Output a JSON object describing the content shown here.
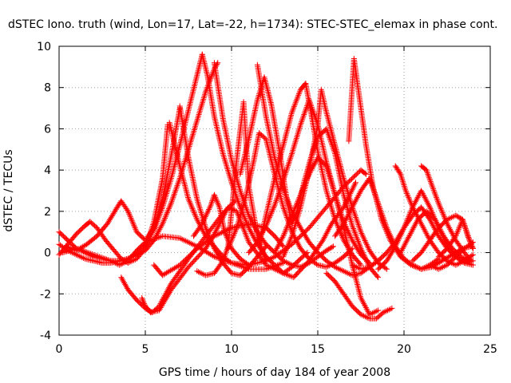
{
  "chart_data": {
    "type": "scatter",
    "title": "dSTEC Iono. truth (wind, Lon=17, Lat=-22, h=1734): STEC-STEC_elemax in phase cont.",
    "xlabel": "GPS time / hours of day 184 of year 2008",
    "ylabel": "dSTEC  / TECUs",
    "xlim": [
      0,
      25
    ],
    "ylim": [
      -4,
      10
    ],
    "xticks": [
      0,
      5,
      10,
      15,
      20,
      25
    ],
    "yticks": [
      -4,
      -2,
      0,
      2,
      4,
      6,
      8,
      10
    ],
    "grid": true,
    "marker": "+",
    "color": "#ff0000",
    "series": [
      {
        "x": [
          0.0,
          0.5,
          1.0,
          1.5,
          2.0,
          2.5,
          3.0,
          3.5,
          4.0,
          4.5,
          5.0,
          5.5,
          6.0,
          6.5,
          7.0,
          7.5,
          8.0,
          8.3
        ],
        "y": [
          0.4,
          0.1,
          -0.1,
          -0.3,
          -0.4,
          -0.5,
          -0.5,
          -0.4,
          -0.3,
          0.0,
          0.4,
          1.1,
          2.2,
          3.6,
          5.2,
          6.9,
          8.6,
          9.6
        ]
      },
      {
        "x": [
          0.0,
          0.5,
          1.0,
          1.5,
          2.0,
          2.5,
          3.0,
          3.5,
          4.0,
          4.5,
          5.0,
          5.5,
          6.0,
          6.5,
          7.0,
          7.5,
          8.0,
          8.5,
          9.0,
          9.2
        ],
        "y": [
          1.0,
          0.6,
          0.2,
          0.0,
          -0.2,
          -0.3,
          -0.4,
          -0.4,
          -0.3,
          -0.1,
          0.1,
          0.6,
          1.4,
          2.4,
          3.6,
          5.0,
          6.4,
          7.8,
          8.9,
          9.2
        ]
      },
      {
        "x": [
          0.0,
          0.5,
          1.0,
          1.5,
          1.8,
          2.2,
          2.7,
          3.2,
          3.6,
          4.0,
          4.5,
          5.0,
          5.5,
          6.0,
          6.3
        ],
        "y": [
          -0.1,
          0.4,
          0.9,
          1.3,
          1.5,
          1.2,
          0.6,
          0.1,
          -0.3,
          -0.5,
          -0.3,
          0.2,
          1.5,
          3.6,
          6.2
        ]
      },
      {
        "x": [
          0.4,
          1.0,
          1.6,
          2.2,
          2.8,
          3.3,
          3.6,
          4.0,
          4.5,
          5.0,
          5.5,
          6.0,
          6.5,
          7.0
        ],
        "y": [
          0.3,
          0.1,
          0.4,
          0.8,
          1.4,
          2.1,
          2.5,
          2.0,
          1.0,
          0.6,
          1.2,
          2.6,
          4.7,
          7.0
        ]
      },
      {
        "x": [
          0.2,
          1.0,
          2.0,
          3.0,
          3.5,
          4.0,
          4.5,
          5.0,
          6.0,
          7.0,
          8.0,
          9.0,
          10.0,
          11.0,
          12.0,
          12.5,
          13.5,
          14.5,
          15.5,
          16.5,
          17.5,
          17.8
        ],
        "y": [
          0.0,
          0.2,
          -0.1,
          -0.4,
          -0.6,
          -0.4,
          0.1,
          0.5,
          0.8,
          0.7,
          0.3,
          -0.2,
          -0.5,
          -0.6,
          -0.4,
          -0.2,
          0.4,
          1.2,
          2.2,
          3.2,
          4.0,
          3.8
        ]
      },
      {
        "x": [
          3.6,
          4.0,
          4.5,
          5.0,
          5.4,
          5.8,
          6.5,
          7.5,
          8.5,
          9.5,
          10.2
        ],
        "y": [
          -1.2,
          -1.8,
          -2.3,
          -2.7,
          -2.9,
          -2.6,
          -1.5,
          -0.3,
          0.8,
          1.9,
          2.5
        ]
      },
      {
        "x": [
          4.8,
          5.0,
          5.3,
          5.8,
          6.5,
          7.5,
          8.5,
          9.0,
          9.8,
          10.3,
          11.0,
          12.0,
          13.0,
          13.6,
          14.5,
          15.3,
          15.8,
          16.5,
          17.2
        ],
        "y": [
          -2.2,
          -2.6,
          -2.9,
          -2.8,
          -1.8,
          -0.7,
          0.2,
          0.9,
          2.2,
          2.0,
          0.5,
          -0.6,
          -1.0,
          -1.2,
          -0.4,
          0.6,
          1.4,
          2.2,
          3.4
        ]
      },
      {
        "x": [
          5.5,
          6.0,
          7.0,
          8.0,
          9.0,
          10.0,
          11.0,
          12.0,
          12.5,
          13.0
        ],
        "y": [
          -0.6,
          -1.1,
          -0.6,
          0.2,
          0.8,
          1.2,
          1.4,
          1.2,
          0.8,
          0.3
        ]
      },
      {
        "x": [
          8.3,
          8.6,
          9.0,
          9.5,
          10.0,
          10.5,
          11.0,
          11.5,
          12.0,
          12.5,
          13.0,
          13.5,
          14.0,
          14.4
        ],
        "y": [
          9.6,
          8.6,
          6.6,
          4.8,
          3.4,
          2.2,
          1.2,
          0.4,
          -0.2,
          -0.6,
          -1.0,
          -0.7,
          -0.3,
          0.0
        ]
      },
      {
        "x": [
          9.0,
          9.5,
          10.0,
          10.5,
          11.0,
          11.5,
          12.0,
          12.5,
          13.0,
          13.5,
          14.0,
          14.5,
          15.0,
          15.5,
          15.9
        ],
        "y": [
          9.2,
          6.5,
          4.5,
          3.0,
          1.8,
          1.0,
          0.4,
          0.0,
          -0.4,
          -0.6,
          -0.7,
          -0.5,
          -0.2,
          0.1,
          0.3
        ]
      },
      {
        "x": [
          6.4,
          7.0,
          7.5,
          8.0,
          8.5,
          9.0,
          9.5,
          10.0,
          11.0,
          12.0,
          13.0
        ],
        "y": [
          6.3,
          4.2,
          2.6,
          1.6,
          0.8,
          0.3,
          -0.2,
          -0.5,
          -0.8,
          -0.8,
          -0.5
        ]
      },
      {
        "x": [
          7.0,
          7.5,
          8.0,
          8.5,
          9.0,
          9.5,
          10.0,
          10.5,
          11.0,
          11.5,
          12.0
        ],
        "y": [
          7.1,
          4.6,
          2.6,
          1.2,
          0.2,
          -0.5,
          -1.0,
          -1.1,
          -0.7,
          -0.2,
          0.3
        ]
      },
      {
        "x": [
          8.0,
          8.5,
          9.0,
          9.5,
          9.8,
          10.0,
          10.3,
          10.7,
          11.0,
          11.5,
          12.0
        ],
        "y": [
          -0.9,
          -1.1,
          -1.0,
          -0.4,
          0.3,
          2.0,
          4.5,
          7.3,
          3.2,
          0.8,
          -0.4
        ]
      },
      {
        "x": [
          7.8,
          8.3,
          8.8,
          9.0,
          9.3,
          9.6,
          10.0,
          10.5,
          11.0
        ],
        "y": [
          0.8,
          1.4,
          2.3,
          2.8,
          2.2,
          1.0,
          0.2,
          -0.3,
          -0.6
        ]
      },
      {
        "x": [
          9.8,
          10.3,
          10.8,
          11.3,
          11.6,
          12.0,
          12.5,
          13.0,
          13.5,
          14.0,
          14.5,
          15.0,
          15.5,
          16.0,
          16.5,
          17.0
        ],
        "y": [
          0.2,
          1.2,
          2.6,
          4.5,
          5.8,
          5.5,
          3.8,
          2.2,
          1.0,
          0.2,
          -0.3,
          -0.6,
          -0.7,
          -0.5,
          -0.2,
          0.2
        ]
      },
      {
        "x": [
          11.5,
          12.0,
          12.5,
          13.0,
          13.5,
          14.0,
          14.5,
          15.0,
          15.5,
          16.0,
          16.5,
          17.0,
          17.5,
          18.0,
          18.5
        ],
        "y": [
          9.1,
          6.6,
          4.6,
          3.1,
          2.0,
          1.2,
          0.5,
          0.0,
          -0.4,
          -0.7,
          -0.9,
          -1.1,
          -1.0,
          -0.7,
          -0.4
        ]
      },
      {
        "x": [
          10.5,
          11.0,
          11.5,
          11.9,
          12.3,
          12.8,
          13.2,
          13.5,
          13.8,
          14.2,
          14.6,
          15.0,
          15.5,
          16.0,
          16.5,
          17.0,
          17.5,
          18.0,
          18.5
        ],
        "y": [
          3.8,
          5.5,
          7.4,
          8.5,
          7.2,
          4.8,
          2.6,
          1.4,
          2.0,
          3.4,
          4.6,
          5.6,
          6.0,
          4.8,
          2.8,
          1.3,
          0.2,
          -0.7,
          -1.2
        ]
      },
      {
        "x": [
          11.6,
          12.0,
          12.5,
          13.0,
          13.5,
          14.0,
          14.3,
          14.6,
          15.0,
          15.5,
          16.0,
          16.5,
          17.0,
          17.5
        ],
        "y": [
          0.4,
          1.8,
          3.6,
          5.2,
          6.8,
          7.9,
          8.2,
          6.8,
          4.9,
          3.0,
          1.6,
          0.6,
          -0.1,
          -0.6
        ]
      },
      {
        "x": [
          11.0,
          11.5,
          12.0,
          12.5,
          13.0,
          13.5,
          14.0,
          14.5,
          15.0,
          15.5,
          16.0,
          16.5,
          17.0,
          17.5,
          18.0
        ],
        "y": [
          0.0,
          0.5,
          1.3,
          2.3,
          3.5,
          4.8,
          6.2,
          7.4,
          6.2,
          4.4,
          2.8,
          1.5,
          0.6,
          -0.1,
          -0.5
        ]
      },
      {
        "x": [
          13.0,
          13.5,
          14.0,
          14.5,
          15.0,
          15.2,
          15.5,
          16.0,
          16.5,
          17.0,
          17.5,
          18.0,
          18.5,
          19.0
        ],
        "y": [
          -0.2,
          0.8,
          2.2,
          4.0,
          6.2,
          7.9,
          6.8,
          5.2,
          3.6,
          2.2,
          1.0,
          0.1,
          -0.5,
          -0.8
        ]
      },
      {
        "x": [
          12.5,
          13.0,
          13.5,
          14.0,
          14.5,
          15.0,
          15.5,
          16.0,
          16.5,
          17.0,
          17.5,
          18.0,
          18.5
        ],
        "y": [
          0.0,
          0.8,
          1.8,
          2.8,
          3.8,
          4.6,
          4.2,
          2.8,
          1.2,
          -0.6,
          -2.2,
          -3.0,
          -2.8
        ]
      },
      {
        "x": [
          15.5,
          16.0,
          16.5,
          17.0,
          17.5,
          18.0,
          18.4,
          18.8,
          19.3
        ],
        "y": [
          -1.0,
          -1.4,
          -2.0,
          -2.6,
          -3.0,
          -3.2,
          -3.2,
          -2.9,
          -2.7
        ]
      },
      {
        "x": [
          16.8,
          17.1,
          17.4,
          17.8,
          18.2,
          18.7,
          19.2,
          19.8,
          20.4,
          21.0,
          21.6,
          22.2,
          22.8,
          23.4,
          23.9
        ],
        "y": [
          5.4,
          9.4,
          7.6,
          5.2,
          3.2,
          1.6,
          0.6,
          -0.2,
          -0.6,
          -0.8,
          -0.7,
          -0.4,
          -0.1,
          0.2,
          0.3
        ]
      },
      {
        "x": [
          16.0,
          16.5,
          17.0,
          17.5,
          18.0,
          18.5,
          19.0,
          19.5,
          20.0,
          20.5,
          21.0,
          21.5,
          22.0
        ],
        "y": [
          0.8,
          1.4,
          2.2,
          3.0,
          3.6,
          2.4,
          1.2,
          0.3,
          -0.3,
          -0.6,
          -0.8,
          -0.6,
          -0.3
        ]
      },
      {
        "x": [
          17.0,
          17.5,
          18.0,
          18.5,
          19.0,
          19.5,
          20.0,
          20.5,
          21.0,
          21.5,
          22.0,
          22.5,
          23.0,
          23.5,
          24.0
        ],
        "y": [
          -0.6,
          -0.8,
          -0.7,
          -0.4,
          0.0,
          0.5,
          1.2,
          1.8,
          2.2,
          1.6,
          0.8,
          0.2,
          -0.2,
          -0.5,
          -0.6
        ]
      },
      {
        "x": [
          18.5,
          19.0,
          19.5,
          20.0,
          20.5,
          21.0,
          21.5,
          22.0,
          22.5,
          23.0,
          23.5,
          24.0
        ],
        "y": [
          -0.8,
          -0.4,
          0.3,
          1.2,
          2.2,
          3.0,
          2.2,
          1.2,
          0.4,
          -0.2,
          -0.5,
          -0.4
        ]
      },
      {
        "x": [
          19.5,
          19.8,
          20.1,
          20.5,
          21.0,
          21.5,
          22.0,
          22.5,
          23.0,
          23.5,
          24.0
        ],
        "y": [
          4.2,
          3.8,
          3.0,
          2.2,
          1.4,
          0.6,
          0.0,
          -0.4,
          -0.6,
          -0.4,
          -0.1
        ]
      },
      {
        "x": [
          21.0,
          21.3,
          21.6,
          22.0,
          22.5,
          23.0,
          23.5,
          23.9
        ],
        "y": [
          4.2,
          4.0,
          3.3,
          2.4,
          1.4,
          0.6,
          0.0,
          -0.4
        ]
      },
      {
        "x": [
          20.5,
          21.0,
          21.5,
          22.0,
          22.5,
          23.0,
          23.4,
          23.8,
          24.0
        ],
        "y": [
          -0.4,
          0.0,
          0.6,
          1.2,
          1.6,
          1.8,
          1.6,
          0.6,
          0.2
        ]
      },
      {
        "x": [
          19.8,
          20.3,
          20.8,
          21.3,
          21.8,
          22.3,
          22.8,
          23.3,
          23.8
        ],
        "y": [
          0.0,
          0.8,
          1.6,
          2.0,
          1.6,
          0.8,
          0.2,
          -0.2,
          -0.4
        ]
      },
      {
        "x": [
          21.5,
          22.0,
          22.5,
          23.0,
          23.5,
          24.0
        ],
        "y": [
          -0.6,
          -0.8,
          -0.6,
          -0.2,
          0.2,
          0.5
        ]
      },
      {
        "x": [
          22.0,
          22.5,
          23.0,
          23.4,
          23.7,
          24.0
        ],
        "y": [
          -0.2,
          0.2,
          0.8,
          1.6,
          0.8,
          0.2
        ]
      }
    ]
  }
}
